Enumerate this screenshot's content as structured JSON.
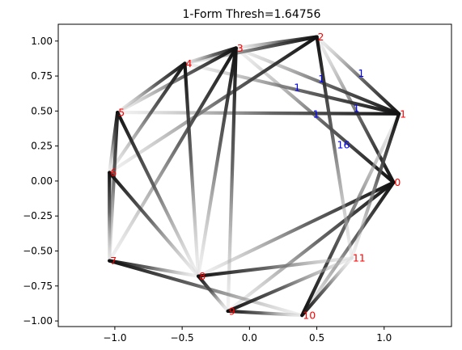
{
  "chart_data": {
    "type": "network",
    "title": "1-Form Thresh=1.64756",
    "xlim": [
      -1.42,
      1.5
    ],
    "ylim": [
      -1.04,
      1.12
    ],
    "xticks": [
      -1.0,
      -0.5,
      0.0,
      0.5,
      1.0
    ],
    "xtick_labels": [
      "−1.0",
      "−0.5",
      "0.0",
      "0.5",
      "1.0"
    ],
    "yticks": [
      -1.0,
      -0.75,
      -0.5,
      -0.25,
      0.0,
      0.25,
      0.5,
      0.75,
      1.0
    ],
    "ytick_labels": [
      "−1.00",
      "−0.75",
      "−0.50",
      "−0.25",
      "0.00",
      "0.25",
      "0.50",
      "0.75",
      "1.00"
    ],
    "node_label_color": "#ff0000",
    "edge_label_color": "#0000ff",
    "nodes": [
      {
        "id": "0",
        "x": 1.07,
        "y": -0.01
      },
      {
        "id": "1",
        "x": 1.11,
        "y": 0.48
      },
      {
        "id": "2",
        "x": 0.5,
        "y": 1.03
      },
      {
        "id": "3",
        "x": -0.1,
        "y": 0.95
      },
      {
        "id": "4",
        "x": -0.48,
        "y": 0.84
      },
      {
        "id": "5",
        "x": -0.98,
        "y": 0.49
      },
      {
        "id": "6",
        "x": -1.04,
        "y": 0.06
      },
      {
        "id": "7",
        "x": -1.04,
        "y": -0.57
      },
      {
        "id": "8",
        "x": -0.38,
        "y": -0.68
      },
      {
        "id": "9",
        "x": -0.16,
        "y": -0.93
      },
      {
        "id": "10",
        "x": 0.39,
        "y": -0.96
      },
      {
        "id": "11",
        "x": 0.76,
        "y": -0.55
      }
    ],
    "edges": [
      {
        "source": "0",
        "target": "2",
        "dark_end": "source"
      },
      {
        "source": "0",
        "target": "3",
        "dark_end": "source"
      },
      {
        "source": "0",
        "target": "10",
        "dark_end": "source"
      },
      {
        "source": "0",
        "target": "8",
        "dark_end": "source"
      },
      {
        "source": "0",
        "target": "9",
        "dark_end": "source"
      },
      {
        "source": "1",
        "target": "2",
        "dark_end": "source"
      },
      {
        "source": "1",
        "target": "3",
        "dark_end": "source"
      },
      {
        "source": "1",
        "target": "10",
        "dark_end": "target"
      },
      {
        "source": "1",
        "target": "11",
        "dark_end": "source"
      },
      {
        "source": "1",
        "target": "4",
        "dark_end": "source"
      },
      {
        "source": "1",
        "target": "5",
        "dark_end": "source"
      },
      {
        "source": "2",
        "target": "3",
        "dark_end": "source"
      },
      {
        "source": "2",
        "target": "4",
        "dark_end": "source"
      },
      {
        "source": "2",
        "target": "11",
        "dark_end": "source"
      },
      {
        "source": "2",
        "target": "6",
        "dark_end": "source"
      },
      {
        "source": "3",
        "target": "4",
        "dark_end": "source"
      },
      {
        "source": "3",
        "target": "5",
        "dark_end": "source"
      },
      {
        "source": "3",
        "target": "8",
        "dark_end": "source"
      },
      {
        "source": "3",
        "target": "7",
        "dark_end": "source"
      },
      {
        "source": "3",
        "target": "9",
        "dark_end": "source"
      },
      {
        "source": "4",
        "target": "8",
        "dark_end": "source"
      },
      {
        "source": "4",
        "target": "6",
        "dark_end": "source"
      },
      {
        "source": "4",
        "target": "5",
        "dark_end": "source"
      },
      {
        "source": "5",
        "target": "8",
        "dark_end": "source"
      },
      {
        "source": "5",
        "target": "7",
        "dark_end": "source"
      },
      {
        "source": "5",
        "target": "6",
        "dark_end": "source"
      },
      {
        "source": "6",
        "target": "8",
        "dark_end": "source"
      },
      {
        "source": "6",
        "target": "7",
        "dark_end": "source"
      },
      {
        "source": "7",
        "target": "8",
        "dark_end": "source"
      },
      {
        "source": "7",
        "target": "10",
        "dark_end": "source"
      },
      {
        "source": "8",
        "target": "9",
        "dark_end": "source"
      },
      {
        "source": "8",
        "target": "11",
        "dark_end": "source"
      },
      {
        "source": "9",
        "target": "10",
        "dark_end": "source"
      },
      {
        "source": "9",
        "target": "11",
        "dark_end": "source"
      },
      {
        "source": "10",
        "target": "11",
        "dark_end": "source"
      }
    ],
    "edge_labels": [
      {
        "text": "1",
        "x": 0.805,
        "y": 0.77
      },
      {
        "text": "1",
        "x": 0.51,
        "y": 0.73
      },
      {
        "text": "1",
        "x": 0.33,
        "y": 0.67
      },
      {
        "text": "1",
        "x": 0.77,
        "y": 0.52
      },
      {
        "text": "1",
        "x": 0.47,
        "y": 0.48
      },
      {
        "text": "16",
        "x": 0.65,
        "y": 0.26
      }
    ]
  }
}
